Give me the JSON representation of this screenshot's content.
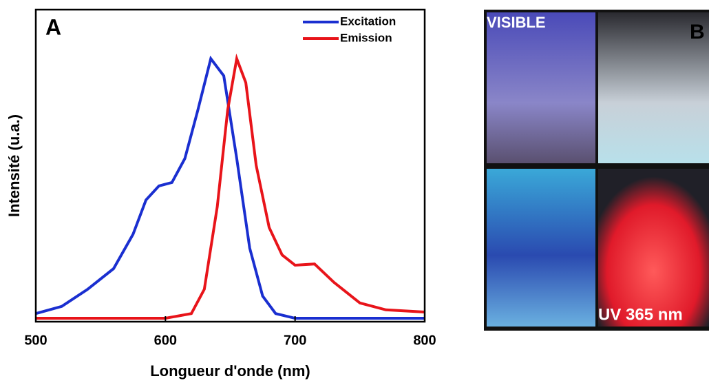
{
  "chart_data": {
    "type": "line",
    "panel_label": "A",
    "xlabel": "Longueur d'onde (nm)",
    "ylabel": "Intensité (u.a.)",
    "xlim": [
      500,
      800
    ],
    "xticks": [
      500,
      600,
      700,
      800
    ],
    "ylim": [
      0,
      1
    ],
    "legend": "upper right",
    "series": [
      {
        "name": "Excitation",
        "color": "#1a2fd0",
        "x": [
          500,
          520,
          540,
          560,
          575,
          585,
          595,
          605,
          615,
          625,
          635,
          645,
          655,
          665,
          675,
          685,
          700,
          800
        ],
        "values": [
          0.026,
          0.049,
          0.104,
          0.17,
          0.28,
          0.39,
          0.435,
          0.446,
          0.523,
          0.678,
          0.843,
          0.788,
          0.523,
          0.236,
          0.082,
          0.026,
          0.011,
          0.011
        ]
      },
      {
        "name": "Emission",
        "color": "#e8141a",
        "x": [
          500,
          600,
          620,
          630,
          640,
          648,
          655,
          662,
          670,
          680,
          690,
          700,
          715,
          730,
          750,
          770,
          800
        ],
        "values": [
          0.011,
          0.011,
          0.026,
          0.104,
          0.369,
          0.678,
          0.843,
          0.766,
          0.501,
          0.302,
          0.214,
          0.181,
          0.185,
          0.126,
          0.06,
          0.038,
          0.031
        ]
      }
    ]
  },
  "photo": {
    "panel_label": "B",
    "top_label": "VISIBLE",
    "bottom_label": "UV 365 nm"
  }
}
